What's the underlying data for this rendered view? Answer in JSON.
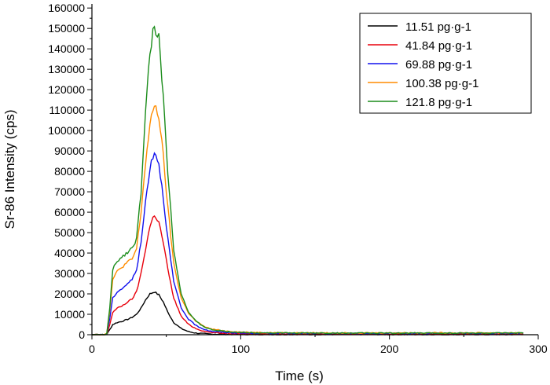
{
  "chart_data": {
    "type": "line",
    "title": "",
    "xlabel": "Time (s)",
    "ylabel": "Sr-86 Intensity (cps)",
    "xlim": [
      0,
      300
    ],
    "ylim": [
      0,
      162000
    ],
    "xticks": [
      0,
      100,
      200,
      300
    ],
    "xtick_labels": [
      "0",
      "100",
      "200",
      "300"
    ],
    "yticks": [
      0,
      10000,
      20000,
      30000,
      40000,
      50000,
      60000,
      70000,
      80000,
      90000,
      100000,
      110000,
      120000,
      130000,
      140000,
      150000,
      160000
    ],
    "ytick_labels": [
      "0",
      "10000",
      "20000",
      "30000",
      "40000",
      "50000",
      "60000",
      "70000",
      "80000",
      "90000",
      "100000",
      "110000",
      "120000",
      "130000",
      "140000",
      "150000",
      "160000"
    ],
    "grid": false,
    "legend_position": "top-right",
    "x": [
      0,
      5,
      8,
      10,
      12,
      14,
      17,
      20,
      24,
      27,
      30,
      33,
      36,
      39,
      42,
      45,
      48,
      51,
      55,
      60,
      65,
      70,
      75,
      80,
      90,
      100,
      120,
      150,
      200,
      250,
      290
    ],
    "series": [
      {
        "name": "11.51 pg·g-1",
        "color": "#000000",
        "values": [
          0,
          0,
          0,
          200,
          2500,
          5000,
          6000,
          6500,
          7500,
          8500,
          10000,
          13000,
          17000,
          20000,
          21000,
          19500,
          16000,
          11000,
          6000,
          3000,
          1500,
          800,
          500,
          300,
          200,
          150,
          120,
          100,
          100,
          100,
          100
        ]
      },
      {
        "name": "41.84 pg·g-1",
        "color": "#e8000b",
        "values": [
          0,
          0,
          0,
          300,
          5000,
          11000,
          13000,
          14000,
          16000,
          17500,
          21000,
          30000,
          42000,
          53000,
          59000,
          55000,
          45000,
          32000,
          18000,
          9000,
          5000,
          3000,
          1800,
          1100,
          700,
          500,
          400,
          350,
          350,
          350,
          350
        ]
      },
      {
        "name": "69.88 pg·g-1",
        "color": "#1010ee",
        "values": [
          0,
          0,
          0,
          400,
          8000,
          18000,
          21000,
          22500,
          25000,
          27000,
          32000,
          45000,
          65000,
          82000,
          90000,
          84000,
          67000,
          47000,
          26000,
          13000,
          7500,
          4500,
          2800,
          1700,
          1100,
          800,
          700,
          650,
          650,
          700,
          700
        ]
      },
      {
        "name": "100.38 pg·g-1",
        "color": "#ff8c00",
        "values": [
          0,
          0,
          0,
          500,
          12000,
          27000,
          31000,
          33000,
          35500,
          37000,
          42000,
          60000,
          84000,
          102000,
          113000,
          107000,
          87000,
          62000,
          35000,
          18000,
          10500,
          6500,
          4200,
          2800,
          1800,
          1300,
          1000,
          900,
          900,
          900,
          900
        ]
      },
      {
        "name": "121.8 pg·g-1",
        "color": "#1a8c1a",
        "values": [
          0,
          0,
          0,
          500,
          13000,
          32000,
          36000,
          38000,
          40500,
          42500,
          47000,
          70000,
          108000,
          138000,
          152000,
          145000,
          116000,
          80000,
          42000,
          20000,
          11000,
          6500,
          4000,
          2500,
          1600,
          1100,
          900,
          800,
          800,
          800,
          800
        ]
      }
    ]
  }
}
